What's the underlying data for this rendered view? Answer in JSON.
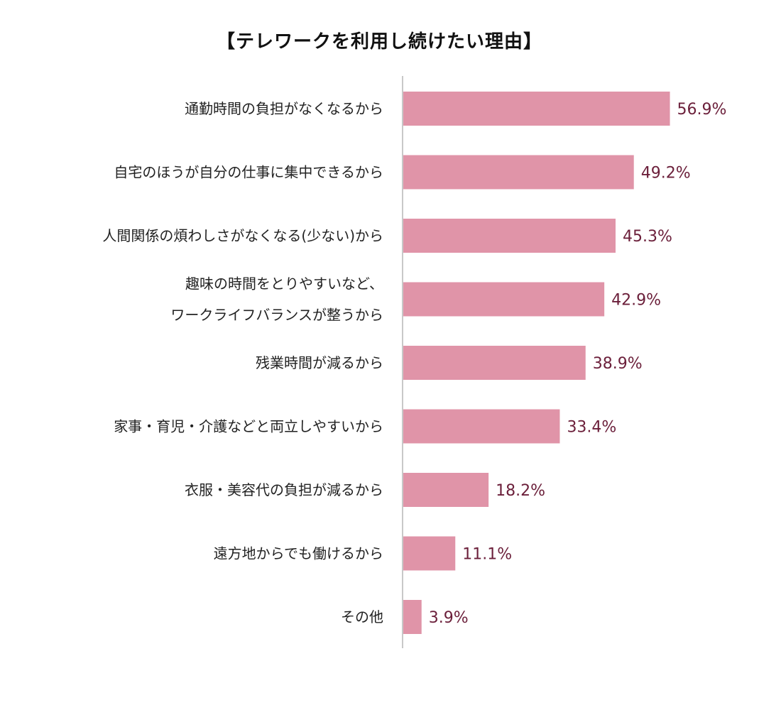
{
  "chart_data": {
    "type": "bar",
    "orientation": "horizontal",
    "title": "【テレワークを利用し続けたい理由】",
    "categories": [
      [
        "通勤時間の負担がなくなるから"
      ],
      [
        "自宅のほうが自分の仕事に集中できるから"
      ],
      [
        "人間関係の煩わしさがなくなる(少ない)から"
      ],
      [
        "趣味の時間をとりやすいなど、",
        "ワークライフバランスが整うから"
      ],
      [
        "残業時間が減るから"
      ],
      [
        "家事・育児・介護などと両立しやすいから"
      ],
      [
        "衣服・美容代の負担が減るから"
      ],
      [
        "遠方地からでも働けるから"
      ],
      [
        "その他"
      ]
    ],
    "series": [
      {
        "values": [
          56.9,
          49.2,
          45.3,
          42.9,
          38.9,
          33.4,
          18.2,
          11.1,
          3.9
        ]
      }
    ],
    "value_labels": [
      "56.9%",
      "49.2%",
      "45.3%",
      "42.9%",
      "38.9%",
      "33.4%",
      "18.2%",
      "11.1%",
      "3.9%"
    ],
    "unit": "%",
    "xlim": [
      0,
      70
    ],
    "grid": false,
    "legend": "none",
    "colors": {
      "bar": "#e094a8",
      "value_text": "#6b1f3a",
      "axis": "#c8c8c8"
    }
  }
}
